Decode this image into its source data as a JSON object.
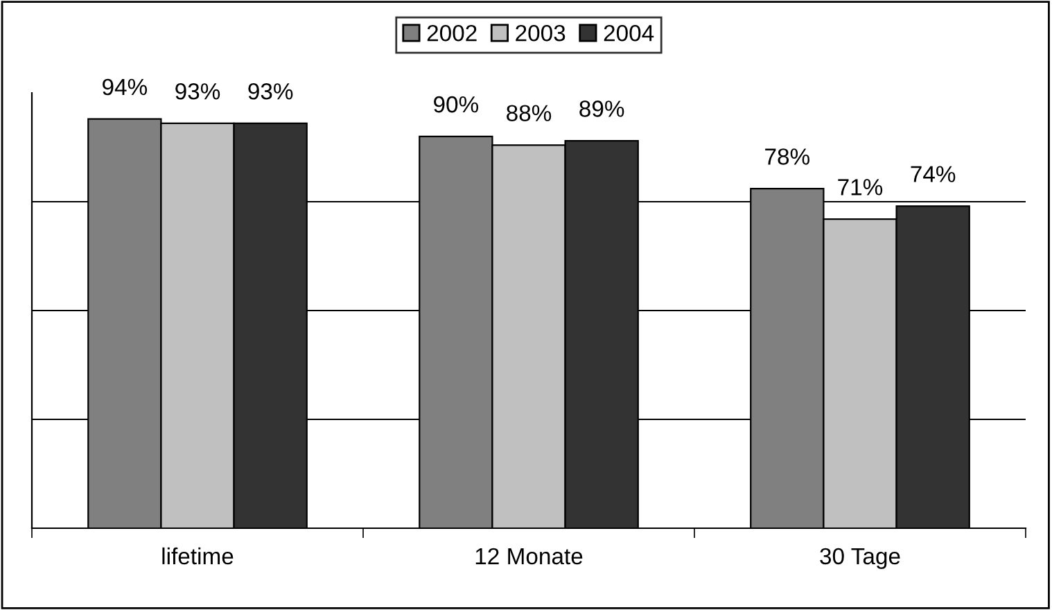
{
  "chart_data": {
    "type": "bar",
    "categories": [
      "lifetime",
      "12 Monate",
      "30 Tage"
    ],
    "series": [
      {
        "name": "2002",
        "color": "#808080",
        "values": [
          94,
          90,
          78
        ],
        "value_labels": [
          "94%",
          "90%",
          "78%"
        ]
      },
      {
        "name": "2003",
        "color": "#c0c0c0",
        "values": [
          93,
          88,
          71
        ],
        "value_labels": [
          "93%",
          "88%",
          "71%"
        ]
      },
      {
        "name": "2004",
        "color": "#333333",
        "values": [
          93,
          89,
          74
        ],
        "value_labels": [
          "93%",
          "89%",
          "74%"
        ]
      }
    ],
    "ylim": [
      0,
      100
    ],
    "yticks": [
      {
        "value": 0,
        "label": null
      },
      {
        "value": 25,
        "label": null
      },
      {
        "value": 50,
        "label": null
      },
      {
        "value": 75,
        "label": null
      }
    ],
    "grid": "y",
    "legend": "top",
    "tick_labels": "x"
  }
}
